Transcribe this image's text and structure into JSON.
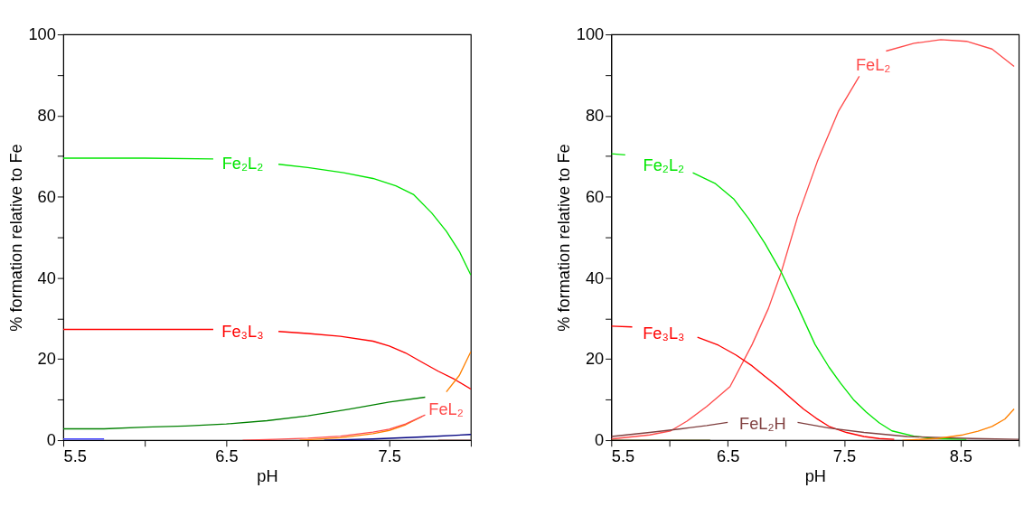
{
  "chart_data": [
    {
      "type": "line",
      "xlabel": "pH",
      "ylabel": "% formation relative to Fe",
      "xlim": [
        5.5,
        8.0
      ],
      "ylim": [
        0,
        100
      ],
      "xticks": [
        5.5,
        {
          "value": 6.0,
          "label": null
        },
        6.5,
        {
          "value": 7.0,
          "label": null
        },
        7.5,
        {
          "value": 8.0,
          "label": null
        }
      ],
      "yticks": [
        0,
        {
          "value": 10,
          "label": null
        },
        20,
        {
          "value": 30,
          "label": null
        },
        40,
        {
          "value": 50,
          "label": null
        },
        60,
        {
          "value": 70,
          "label": null
        },
        80,
        {
          "value": 90,
          "label": null
        },
        100
      ],
      "grid": false,
      "marker": "none",
      "line_style": "solid",
      "series": [
        {
          "name": "Fe₂L₂",
          "color": "#00e600",
          "x": [
            5.5,
            6.0,
            6.42,
            6.6,
            6.82,
            7.0,
            7.22,
            7.4,
            7.54,
            7.65,
            7.76,
            7.85,
            7.93,
            8.0
          ],
          "values": [
            69.5,
            69.5,
            69.3,
            null,
            68,
            67.2,
            65.9,
            64.5,
            62.7,
            60.5,
            56,
            51.5,
            46.5,
            40.7
          ]
        },
        {
          "name": "Fe₃L₃",
          "color": "#ff0000",
          "x": [
            5.5,
            6.0,
            6.42,
            6.6,
            6.82,
            7.0,
            7.2,
            7.4,
            7.5,
            7.6,
            7.71,
            7.8,
            7.9,
            8.0
          ],
          "values": [
            27.3,
            27.3,
            27.3,
            null,
            26.8,
            26.3,
            25.6,
            24.4,
            23.2,
            21.5,
            19,
            17,
            15,
            12.6
          ]
        },
        {
          "color": "#008000",
          "x": [
            5.5,
            5.75,
            6.0,
            6.25,
            6.5,
            6.75,
            7.0,
            7.25,
            7.5,
            7.72
          ],
          "values": [
            2.8,
            2.8,
            3.2,
            3.5,
            4.0,
            4.8,
            6.0,
            7.6,
            9.4,
            10.6
          ]
        },
        {
          "color": "#ff8000",
          "x": [
            6.95,
            7.2,
            7.4,
            7.5,
            7.6,
            7.7,
            7.76,
            7.85,
            7.93,
            8.0
          ],
          "values": [
            0,
            0.6,
            1.6,
            2.4,
            3.8,
            5.8,
            null,
            11.9,
            16,
            21.8
          ]
        },
        {
          "name": "FeL₂",
          "color": "#ff4c4c",
          "x": [
            6.6,
            6.8,
            7.0,
            7.2,
            7.4,
            7.5,
            7.6,
            7.72
          ],
          "values": [
            0,
            0.2,
            0.5,
            1.0,
            2.0,
            2.7,
            4,
            6.2
          ]
        },
        {
          "color": "#000080",
          "x": [
            7.1,
            7.4,
            7.7,
            8.0
          ],
          "values": [
            0,
            0.3,
            0.8,
            1.4
          ]
        },
        {
          "color": "#4040ff",
          "x": [
            5.5,
            5.75
          ],
          "values": [
            0.3,
            0.3
          ]
        },
        {
          "color": "#804040",
          "x": [
            7.8,
            8.0
          ],
          "values": [
            0,
            0
          ]
        }
      ]
    },
    {
      "type": "line",
      "xlabel": "pH",
      "ylabel": "% formation relative to Fe",
      "xlim": [
        5.5,
        9.0
      ],
      "ylim": [
        0,
        100
      ],
      "xticks": [
        5.5,
        {
          "value": 6.0,
          "label": null
        },
        6.5,
        {
          "value": 7.0,
          "label": null
        },
        7.5,
        {
          "value": 8.0,
          "label": null
        },
        8.5,
        {
          "value": 9.0,
          "label": null
        }
      ],
      "yticks": [
        0,
        {
          "value": 10,
          "label": null
        },
        20,
        {
          "value": 30,
          "label": null
        },
        40,
        {
          "value": 50,
          "label": null
        },
        60,
        {
          "value": 70,
          "label": null
        },
        80,
        {
          "value": 90,
          "label": null
        },
        100
      ],
      "grid": false,
      "marker": "none",
      "line_style": "solid",
      "series": [
        {
          "name": "FeL₂",
          "color": "#ff4c4c",
          "x": [
            5.5,
            5.83,
            6.01,
            6.15,
            6.32,
            6.45,
            6.52,
            6.71,
            6.85,
            6.96,
            7.1,
            7.27,
            7.45,
            7.63,
            7.75,
            7.86,
            8.1,
            8.33,
            8.55,
            8.77,
            8.96
          ],
          "values": [
            0.3,
            1.3,
            2.3,
            4.7,
            8.3,
            11.5,
            13.2,
            23.6,
            32.5,
            41.4,
            55,
            68.7,
            81,
            89.7,
            null,
            95.9,
            97.8,
            98.7,
            98.3,
            96.4,
            92.1
          ]
        },
        {
          "name": "Fe₂L₂",
          "color": "#00e600",
          "x": [
            5.5,
            5.62,
            5.95,
            6.2,
            6.39,
            6.55,
            6.68,
            6.82,
            6.96,
            7.1,
            7.25,
            7.37,
            7.47,
            7.58,
            7.69,
            7.8,
            7.91,
            8.1,
            8.28,
            8.55
          ],
          "values": [
            70.6,
            70.3,
            null,
            65.9,
            63.3,
            59.5,
            54.6,
            48.5,
            41.4,
            33,
            23.6,
            18,
            14,
            10,
            6.9,
            4.3,
            2.3,
            1.0,
            0.4,
            0.2
          ]
        },
        {
          "name": "Fe₃L₃",
          "color": "#ff0000",
          "x": [
            5.5,
            5.68,
            5.95,
            6.24,
            6.42,
            6.57,
            6.71,
            6.82,
            6.93,
            7.04,
            7.15,
            7.26,
            7.37,
            7.52,
            7.67,
            7.8,
            7.93
          ],
          "values": [
            28.1,
            27.9,
            null,
            25.4,
            23.4,
            21,
            18.3,
            15.7,
            13.2,
            10.4,
            7.7,
            5.4,
            3.4,
            1.9,
            0.9,
            0.4,
            0.2
          ]
        },
        {
          "name": "FeL₂H",
          "color": "#804040",
          "x": [
            5.5,
            5.83,
            6.1,
            6.32,
            6.5,
            6.8,
            7.1,
            7.37,
            7.67,
            8.04,
            8.6,
            9.0
          ],
          "values": [
            0.9,
            1.9,
            2.8,
            3.6,
            4.4,
            null,
            4.4,
            3.0,
            1.9,
            0.9,
            0.4,
            0.2
          ]
        },
        {
          "color": "#ff8000",
          "x": [
            8.0,
            8.3,
            8.52,
            8.65,
            8.77,
            8.88,
            8.96
          ],
          "values": [
            0,
            0.4,
            1.3,
            2.2,
            3.4,
            5.2,
            7.7
          ]
        },
        {
          "color": "#404000",
          "x": [
            5.5,
            6.35
          ],
          "values": [
            0,
            0
          ]
        }
      ]
    }
  ]
}
